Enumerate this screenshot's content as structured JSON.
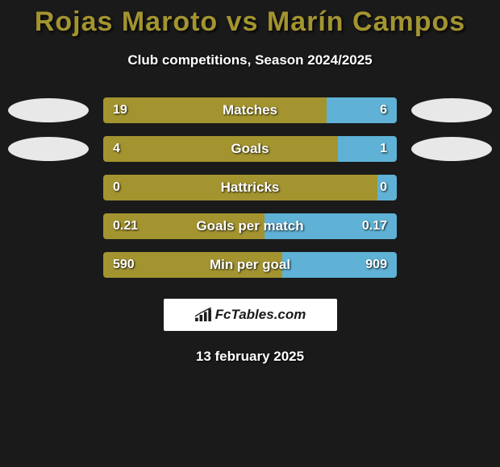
{
  "title": "Rojas Maroto vs Marín Campos",
  "subtitle": "Club competitions, Season 2024/2025",
  "date": "13 february 2025",
  "logo_text": "FcTables.com",
  "colors": {
    "background": "#1a1a1a",
    "title_color": "#a39430",
    "left_bar": "#a39430",
    "right_bar": "#5fb2d6",
    "oval_fill": "#e8e8e8",
    "text_white": "#ffffff"
  },
  "stats": [
    {
      "label": "Matches",
      "left_val": "19",
      "right_val": "6",
      "left_pct": 76,
      "right_pct": 24,
      "show_ovals": true
    },
    {
      "label": "Goals",
      "left_val": "4",
      "right_val": "1",
      "left_pct": 80,
      "right_pct": 20,
      "show_ovals": true
    },
    {
      "label": "Hattricks",
      "left_val": "0",
      "right_val": "0",
      "left_pct": 100,
      "right_pct": 0,
      "show_ovals": false
    },
    {
      "label": "Goals per match",
      "left_val": "0.21",
      "right_val": "0.17",
      "left_pct": 55,
      "right_pct": 45,
      "show_ovals": false
    },
    {
      "label": "Min per goal",
      "left_val": "590",
      "right_val": "909",
      "left_pct": 61,
      "right_pct": 39,
      "show_ovals": false
    }
  ]
}
